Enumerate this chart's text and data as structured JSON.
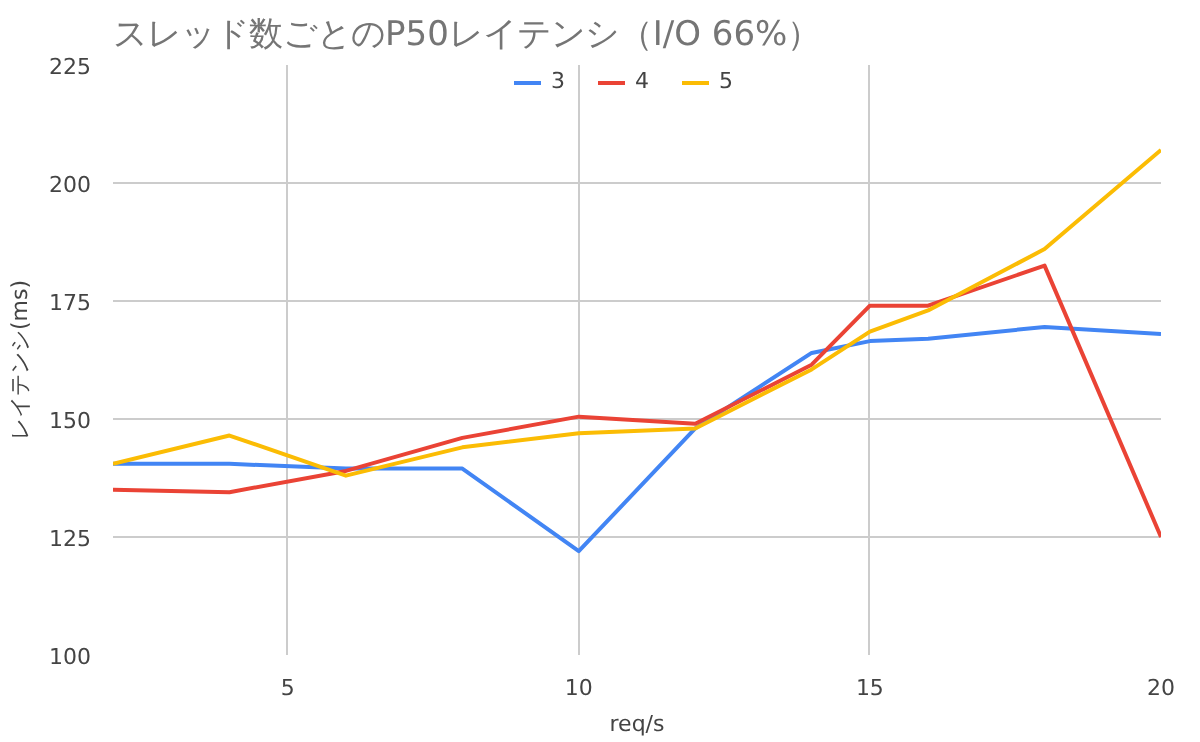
{
  "chart_data": {
    "type": "line",
    "title": "スレッド数ごとのP50レイテンシ（I/O 66%）",
    "xlabel": "req/s",
    "ylabel": "レイテンシ(ms)",
    "x": [
      2,
      4,
      6,
      8,
      10,
      12,
      14,
      15,
      16,
      18,
      20
    ],
    "series": [
      {
        "name": "3",
        "color": "#4285f4",
        "values": [
          140.5,
          140.5,
          139.5,
          139.5,
          122,
          148,
          164,
          166.5,
          167,
          169.5,
          168
        ]
      },
      {
        "name": "4",
        "color": "#ea4335",
        "values": [
          135,
          134.5,
          139,
          146,
          150.5,
          149,
          161.5,
          174,
          174,
          182.5,
          125
        ]
      },
      {
        "name": "5",
        "color": "#fbbc04",
        "values": [
          140.5,
          146.5,
          138,
          144,
          147,
          148,
          160.5,
          168.5,
          173,
          186,
          207
        ]
      }
    ],
    "xlim": [
      2,
      20
    ],
    "xticks": [
      5,
      10,
      15,
      20
    ],
    "ylim": [
      100,
      225
    ],
    "yticks": [
      100,
      125,
      150,
      175,
      200,
      225
    ],
    "grid": true,
    "legend": "top",
    "marker": "none",
    "line_style": "solid"
  }
}
